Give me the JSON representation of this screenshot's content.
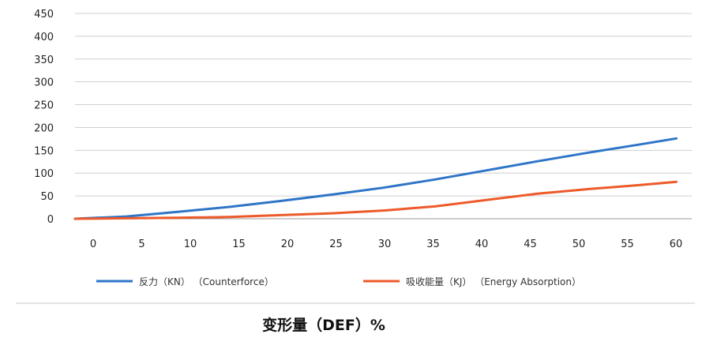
{
  "chart_data": {
    "type": "line",
    "title": "",
    "xlabel": "变形量（DEF）%",
    "ylabel": "",
    "xlim": [
      0,
      60
    ],
    "ylim": [
      0,
      450
    ],
    "x_ticks": [
      0,
      5,
      10,
      15,
      20,
      25,
      30,
      35,
      40,
      45,
      50,
      55,
      60
    ],
    "y_ticks": [
      0,
      50,
      100,
      150,
      200,
      250,
      300,
      350,
      400,
      450
    ],
    "grid": true,
    "legend_position": "bottom",
    "series": [
      {
        "name": "反力（KN） （Counterforce）",
        "color": "#2e75c8",
        "x": [
          0,
          5,
          10,
          15,
          20,
          25,
          30,
          35,
          40,
          45,
          50,
          55,
          58.5
        ],
        "y": [
          0,
          5,
          15,
          26,
          39,
          53,
          68,
          86,
          106,
          126,
          145,
          163,
          176
        ]
      },
      {
        "name": "吸收能量（KJ） （Energy Absorption）",
        "color": "#ed5a2a",
        "x": [
          0,
          5,
          10,
          15,
          20,
          25,
          30,
          35,
          40,
          45,
          50,
          55,
          58.5
        ],
        "y": [
          0,
          1,
          2,
          4,
          8,
          12,
          18,
          27,
          41,
          55,
          65,
          74,
          81
        ]
      }
    ]
  }
}
